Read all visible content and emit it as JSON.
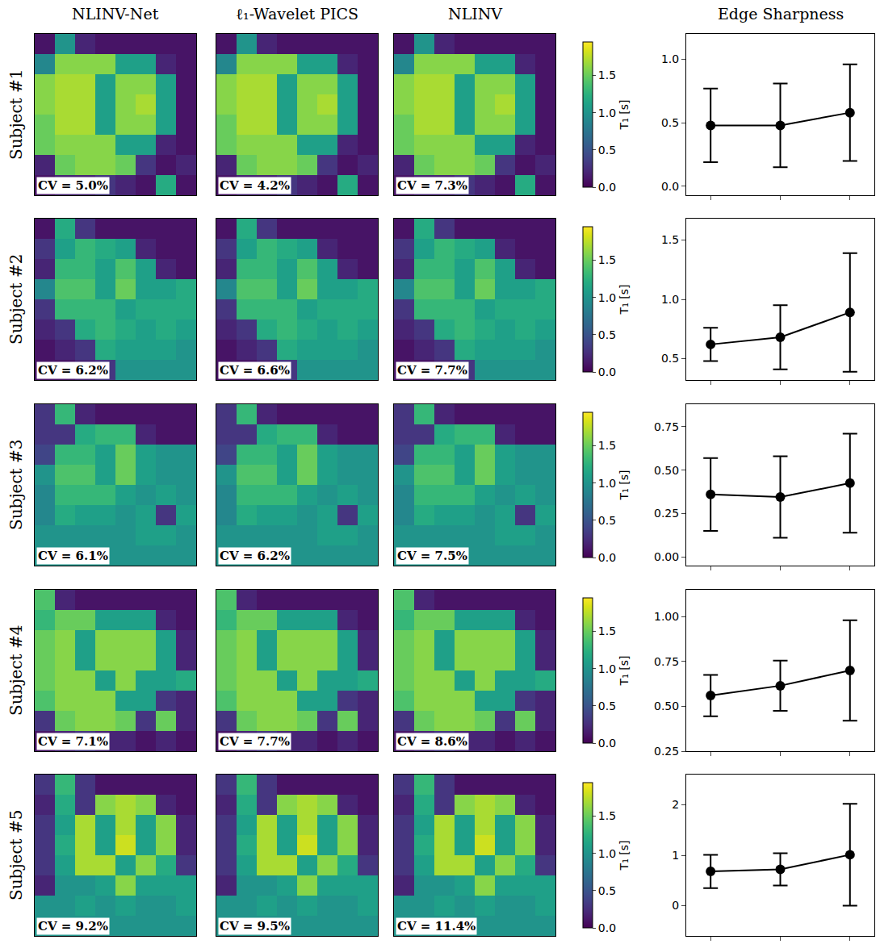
{
  "chart_data": {
    "type": "figure",
    "column_titles": [
      "NLINV-Net",
      "ℓ₁-Wavelet PICS",
      "NLINV",
      "Edge Sharpness"
    ],
    "colorbar": {
      "title": "T₁ [s]",
      "zlim": [
        0,
        1.95
      ],
      "zticks": [
        {
          "value": 0,
          "label": "0.0"
        },
        0.5,
        {
          "value": 1,
          "label": "1.0"
        },
        1.5
      ]
    },
    "rows": [
      {
        "label": "Subject #1",
        "cv_labels": [
          "CV = 5.0%",
          "CV = 4.2%",
          "CV = 7.3%"
        ],
        "cells": [
          [
            0.1,
            1.0,
            0.2,
            0.1,
            0.1,
            0.1,
            0.1,
            0.1
          ],
          [
            0.9,
            1.6,
            1.6,
            1.6,
            1.1,
            1.1,
            0.2,
            0.1
          ],
          [
            1.6,
            1.7,
            1.7,
            1.1,
            1.6,
            1.6,
            1.1,
            0.1
          ],
          [
            1.6,
            1.7,
            1.7,
            1.1,
            1.6,
            1.7,
            1.1,
            0.1
          ],
          [
            1.5,
            1.7,
            1.7,
            1.1,
            1.6,
            1.6,
            1.1,
            0.1
          ],
          [
            1.5,
            1.6,
            1.6,
            1.6,
            1.1,
            1.1,
            0.2,
            0.1
          ],
          [
            0.2,
            1.5,
            1.6,
            1.6,
            1.5,
            0.3,
            0.1,
            0.2
          ],
          [
            0.1,
            0.2,
            0.2,
            0.3,
            0.2,
            0.1,
            1.2,
            0.1
          ]
        ],
        "edge_sharpness": {
          "type": "scatter",
          "x": [
            0,
            1,
            2
          ],
          "values": [
            0.48,
            0.48,
            0.58
          ],
          "errors": [
            0.29,
            0.33,
            0.38
          ],
          "xlim": [
            -0.35,
            2.35
          ],
          "xticks": [
            0,
            1,
            2
          ],
          "ylim": [
            -0.07,
            1.2
          ],
          "yticks": [
            {
              "value": 0,
              "label": "0.0"
            },
            0.5,
            {
              "value": 1,
              "label": "1.0"
            }
          ],
          "tick_labels": "y",
          "color": "#000000",
          "marker": "circle",
          "line_style": "solid"
        }
      },
      {
        "label": "Subject #2",
        "cv_labels": [
          "CV = 6.2%",
          "CV = 6.6%",
          "CV = 7.7%"
        ],
        "cells": [
          [
            0.1,
            1.2,
            0.3,
            0.1,
            0.1,
            0.1,
            0.1,
            0.1
          ],
          [
            0.3,
            1.1,
            1.3,
            1.2,
            1.1,
            0.2,
            0.1,
            0.1
          ],
          [
            0.2,
            1.3,
            1.3,
            1.1,
            1.4,
            1.1,
            0.2,
            0.1
          ],
          [
            0.9,
            1.4,
            1.4,
            1.1,
            1.5,
            1.1,
            1.1,
            1.2
          ],
          [
            0.3,
            1.3,
            1.3,
            1.3,
            1.1,
            1.2,
            1.2,
            1.2
          ],
          [
            0.2,
            0.3,
            1.2,
            1.3,
            1.2,
            1.1,
            1.2,
            1.1
          ],
          [
            0.1,
            0.2,
            0.3,
            1.2,
            1.1,
            1.1,
            1.1,
            1.0
          ],
          [
            0.1,
            0.1,
            0.2,
            0.3,
            1.0,
            1.0,
            1.0,
            1.0
          ]
        ],
        "edge_sharpness": {
          "type": "scatter",
          "x": [
            0,
            1,
            2
          ],
          "values": [
            0.62,
            0.68,
            0.89
          ],
          "errors": [
            0.14,
            0.27,
            0.5
          ],
          "xlim": [
            -0.35,
            2.35
          ],
          "xticks": [
            0,
            1,
            2
          ],
          "ylim": [
            0.32,
            1.68
          ],
          "yticks": [
            0.5,
            {
              "value": 1,
              "label": "1.0"
            },
            1.5
          ],
          "tick_labels": "y",
          "color": "#000000",
          "marker": "circle",
          "line_style": "solid"
        }
      },
      {
        "label": "Subject #3",
        "cv_labels": [
          "CV = 6.1%",
          "CV = 6.2%",
          "CV = 7.5%"
        ],
        "cells": [
          [
            0.3,
            1.3,
            0.2,
            0.1,
            0.1,
            0.1,
            0.1,
            0.1
          ],
          [
            0.3,
            0.3,
            1.2,
            1.3,
            1.3,
            0.2,
            0.1,
            0.1
          ],
          [
            0.4,
            1.3,
            1.3,
            1.1,
            1.5,
            1.1,
            1.0,
            1.0
          ],
          [
            1.0,
            1.4,
            1.4,
            1.1,
            1.5,
            1.1,
            1.0,
            1.0
          ],
          [
            0.9,
            1.3,
            1.3,
            1.3,
            1.1,
            1.0,
            1.1,
            1.0
          ],
          [
            0.9,
            1.2,
            1.1,
            1.1,
            1.0,
            1.1,
            0.3,
            1.1
          ],
          [
            1.0,
            1.0,
            1.0,
            1.0,
            1.0,
            1.1,
            1.1,
            1.0
          ],
          [
            1.0,
            1.0,
            1.0,
            1.0,
            1.0,
            1.0,
            1.0,
            1.0
          ]
        ],
        "edge_sharpness": {
          "type": "scatter",
          "x": [
            0,
            1,
            2
          ],
          "values": [
            0.36,
            0.345,
            0.425
          ],
          "errors": [
            0.21,
            0.235,
            0.285
          ],
          "xlim": [
            -0.35,
            2.35
          ],
          "xticks": [
            0,
            1,
            2
          ],
          "ylim": [
            -0.05,
            0.88
          ],
          "yticks": [
            {
              "value": 0,
              "label": "0.00"
            },
            0.25,
            {
              "value": 0.5,
              "label": "0.50"
            },
            0.75
          ],
          "tick_labels": "y",
          "color": "#000000",
          "marker": "circle",
          "line_style": "solid"
        }
      },
      {
        "label": "Subject #4",
        "cv_labels": [
          "CV = 7.1%",
          "CV = 7.7%",
          "CV = 8.6%"
        ],
        "cells": [
          [
            1.4,
            0.2,
            0.1,
            0.1,
            0.1,
            0.1,
            0.1,
            0.1
          ],
          [
            1.3,
            1.5,
            1.5,
            1.1,
            1.1,
            1.1,
            0.2,
            0.1
          ],
          [
            1.5,
            1.6,
            1.1,
            1.6,
            1.6,
            1.6,
            1.1,
            0.2
          ],
          [
            1.5,
            1.6,
            1.1,
            1.6,
            1.6,
            1.6,
            1.1,
            0.2
          ],
          [
            1.5,
            1.6,
            1.6,
            1.1,
            1.6,
            1.1,
            1.1,
            1.2
          ],
          [
            1.4,
            1.6,
            1.6,
            1.6,
            1.1,
            1.1,
            0.3,
            0.2
          ],
          [
            0.3,
            1.5,
            1.6,
            1.6,
            1.5,
            0.3,
            1.5,
            0.2
          ],
          [
            0.1,
            0.2,
            0.3,
            0.2,
            0.2,
            0.1,
            0.2,
            0.1
          ]
        ],
        "edge_sharpness": {
          "type": "scatter",
          "x": [
            0,
            1,
            2
          ],
          "values": [
            0.56,
            0.615,
            0.7
          ],
          "errors": [
            0.115,
            0.14,
            0.28
          ],
          "xlim": [
            -0.35,
            2.35
          ],
          "xticks": [
            0,
            1,
            2
          ],
          "ylim": [
            0.25,
            1.15
          ],
          "yticks": [
            0.25,
            {
              "value": 0.5,
              "label": "0.50"
            },
            0.75,
            {
              "value": 1,
              "label": "1.00"
            }
          ],
          "tick_labels": "y",
          "color": "#000000",
          "marker": "circle",
          "line_style": "solid"
        }
      },
      {
        "label": "Subject #5",
        "cv_labels": [
          "CV = 9.2%",
          "CV = 9.5%",
          "CV = 11.4%"
        ],
        "cells": [
          [
            0.3,
            1.3,
            0.3,
            0.1,
            0.1,
            0.1,
            0.1,
            0.1
          ],
          [
            0.2,
            1.2,
            0.3,
            1.6,
            1.7,
            1.6,
            0.2,
            0.1
          ],
          [
            0.3,
            1.1,
            1.7,
            1.1,
            1.7,
            1.1,
            1.6,
            0.2
          ],
          [
            0.3,
            1.2,
            1.7,
            1.1,
            1.8,
            1.1,
            1.6,
            0.2
          ],
          [
            0.3,
            1.1,
            1.7,
            1.7,
            1.1,
            1.6,
            1.2,
            0.3
          ],
          [
            0.2,
            1.0,
            1.0,
            1.1,
            1.6,
            1.1,
            1.1,
            1.1
          ],
          [
            1.0,
            1.0,
            1.1,
            1.0,
            1.1,
            1.0,
            1.0,
            1.1
          ],
          [
            1.0,
            1.0,
            1.0,
            1.0,
            1.0,
            1.0,
            1.0,
            1.0
          ]
        ],
        "edge_sharpness": {
          "type": "scatter",
          "x": [
            0,
            1,
            2
          ],
          "values": [
            0.68,
            0.72,
            1.01
          ],
          "errors": [
            0.33,
            0.32,
            1.01
          ],
          "xlim": [
            -0.35,
            2.35
          ],
          "xticks": [
            0,
            1,
            2
          ],
          "ylim": [
            -0.6,
            2.6
          ],
          "yticks": [
            0,
            1,
            2
          ],
          "tick_labels": "y",
          "color": "#000000",
          "marker": "circle",
          "line_style": "solid"
        }
      }
    ]
  }
}
